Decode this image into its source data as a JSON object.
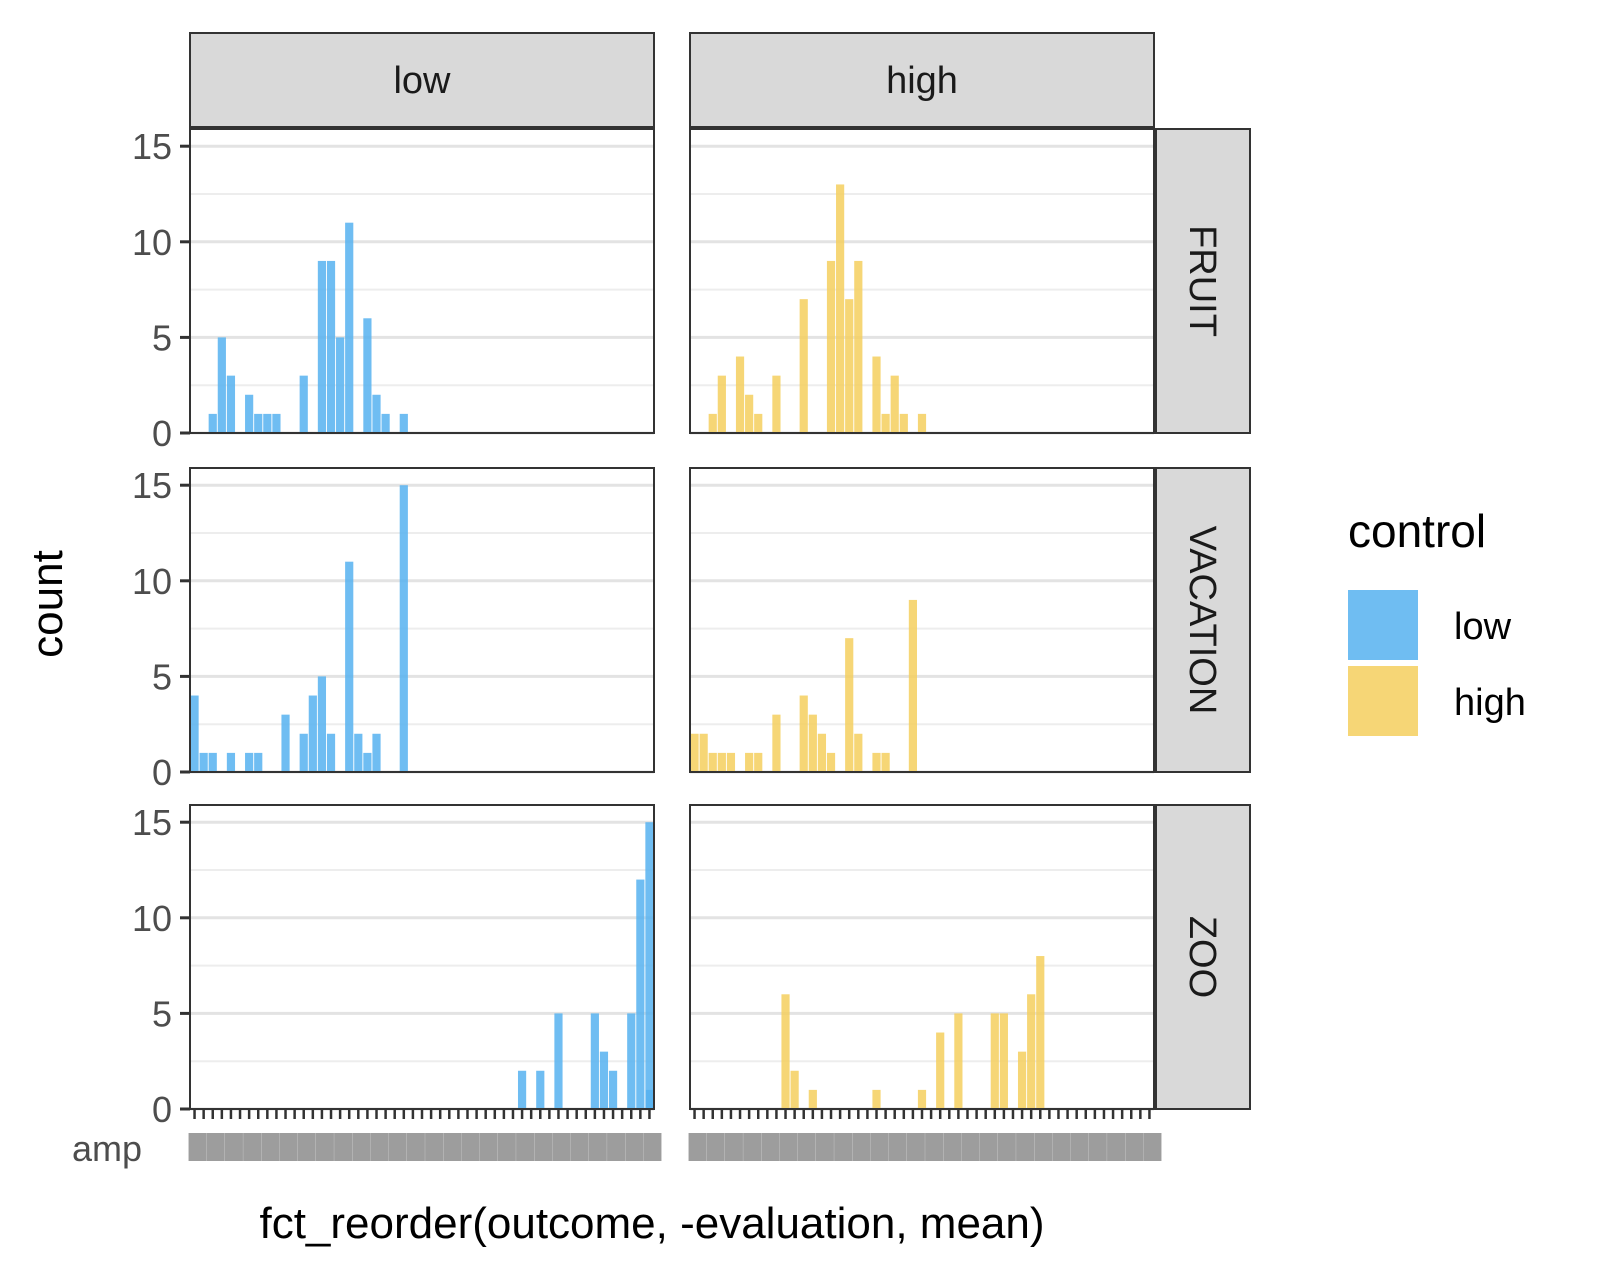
{
  "chart_data": {
    "type": "bar",
    "facet_columns": [
      "low",
      "high"
    ],
    "facet_rows": [
      "FRUIT",
      "VACATION",
      "ZOO"
    ],
    "xlabel": "fct_reorder(outcome, -evaluation, mean)",
    "ylabel": "count",
    "ylim": [
      0,
      15.9
    ],
    "y_ticks": [
      0,
      5,
      10,
      15
    ],
    "grid": true,
    "n_categories": 51,
    "visible_category_labels": [
      "amp"
    ],
    "legend": {
      "title": "control",
      "position": "right",
      "items": [
        {
          "label": "low",
          "color": "#56B1F0"
        },
        {
          "label": "high",
          "color": "#F5CF5E"
        }
      ]
    },
    "bar_opacity": 0.85,
    "series": [
      {
        "name": "low",
        "color": "#56B1F0",
        "row": "FRUIT",
        "bars": [
          [
            2,
            1
          ],
          [
            3,
            5
          ],
          [
            4,
            3
          ],
          [
            6,
            2
          ],
          [
            7,
            1
          ],
          [
            8,
            1
          ],
          [
            9,
            1
          ],
          [
            12,
            3
          ],
          [
            14,
            9
          ],
          [
            15,
            9
          ],
          [
            16,
            5
          ],
          [
            17,
            11
          ],
          [
            19,
            6
          ],
          [
            20,
            2
          ],
          [
            21,
            1
          ],
          [
            23,
            1
          ]
        ]
      },
      {
        "name": "high",
        "color": "#F5CF5E",
        "row": "FRUIT",
        "bars": [
          [
            2,
            1
          ],
          [
            3,
            3
          ],
          [
            5,
            4
          ],
          [
            6,
            2
          ],
          [
            7,
            1
          ],
          [
            9,
            3
          ],
          [
            12,
            7
          ],
          [
            15,
            9
          ],
          [
            16,
            13
          ],
          [
            17,
            7
          ],
          [
            18,
            9
          ],
          [
            20,
            4
          ],
          [
            21,
            1
          ],
          [
            22,
            3
          ],
          [
            23,
            1
          ],
          [
            25,
            1
          ]
        ]
      },
      {
        "name": "low",
        "color": "#56B1F0",
        "row": "VACATION",
        "bars": [
          [
            0,
            4
          ],
          [
            1,
            1
          ],
          [
            2,
            1
          ],
          [
            4,
            1
          ],
          [
            6,
            1
          ],
          [
            7,
            1
          ],
          [
            10,
            3
          ],
          [
            12,
            2
          ],
          [
            13,
            4
          ],
          [
            14,
            5
          ],
          [
            15,
            2
          ],
          [
            17,
            11
          ],
          [
            18,
            2
          ],
          [
            19,
            1
          ],
          [
            20,
            2
          ],
          [
            23,
            15
          ]
        ]
      },
      {
        "name": "high",
        "color": "#F5CF5E",
        "row": "VACATION",
        "bars": [
          [
            0,
            2
          ],
          [
            1,
            2
          ],
          [
            2,
            1
          ],
          [
            3,
            1
          ],
          [
            4,
            1
          ],
          [
            6,
            1
          ],
          [
            7,
            1
          ],
          [
            9,
            3
          ],
          [
            12,
            4
          ],
          [
            13,
            3
          ],
          [
            14,
            2
          ],
          [
            15,
            1
          ],
          [
            17,
            7
          ],
          [
            18,
            2
          ],
          [
            20,
            1
          ],
          [
            21,
            1
          ],
          [
            24,
            9
          ]
        ]
      },
      {
        "name": "low",
        "color": "#56B1F0",
        "row": "ZOO",
        "bars": [
          [
            36,
            2
          ],
          [
            38,
            2
          ],
          [
            40,
            5
          ],
          [
            44,
            5
          ],
          [
            45,
            3
          ],
          [
            46,
            2
          ],
          [
            48,
            5
          ],
          [
            49,
            12
          ],
          [
            50,
            15
          ],
          [
            51,
            1
          ]
        ]
      },
      {
        "name": "high",
        "color": "#F5CF5E",
        "row": "ZOO",
        "bars": [
          [
            10,
            6
          ],
          [
            11,
            2
          ],
          [
            13,
            1
          ],
          [
            20,
            1
          ],
          [
            25,
            1
          ],
          [
            27,
            4
          ],
          [
            29,
            5
          ],
          [
            33,
            5
          ],
          [
            34,
            5
          ],
          [
            36,
            3
          ],
          [
            37,
            6
          ],
          [
            38,
            8
          ]
        ]
      }
    ]
  }
}
